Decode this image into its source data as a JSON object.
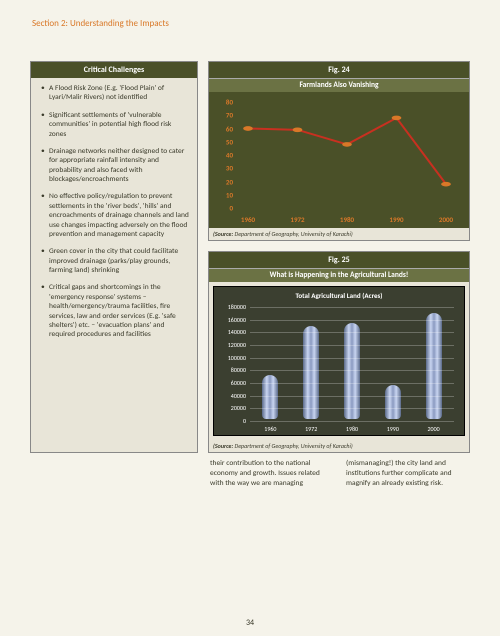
{
  "header": "Section 2: Understanding the Impacts",
  "pageNumber": "34",
  "challenges": {
    "title": "Critical Challenges",
    "items": [
      "A Flood Risk Zone  (E.g. 'Flood Plain' of Lyari/Malir Rivers) not identified",
      "Significant settlements of 'vulnerable communities' in potential high flood risk zones",
      "Drainage networks  neither designed to cater for appropriate rainfall intensity and probability and also faced with blockages/encroachments",
      "No effective policy/regulation to prevent settlements in the 'river beds', 'hills' and encroachments of drainage channels and land use changes impacting adversely on the flood prevention and management capacity",
      "Green cover in the city that could facilitate improved drainage (parks/play grounds, farming land) shrinking",
      "Critical gaps and shortcomings in the 'emergency response'  systems – health/emergency/trauma facilities, fire services, law and order services (E.g. 'safe shelters') etc. – 'evacuation plans' and required procedures and facilities"
    ]
  },
  "fig24": {
    "label": "Fig. 24",
    "subtitle": "Farmlands Also Vanishing",
    "yticks": [
      0,
      10,
      20,
      30,
      40,
      50,
      60,
      70,
      80
    ],
    "ymax": 80,
    "categories": [
      "1960",
      "1972",
      "1980",
      "1990",
      "2000"
    ],
    "values": [
      60,
      59,
      48,
      68,
      18
    ],
    "line_color": "#c83020",
    "marker_color": "#d97828",
    "tick_color": "#d97828",
    "bg": "#4a5028",
    "source_label": "(Source:",
    "source_text": " Department of Geography, University of Karachi)"
  },
  "fig25": {
    "label": "Fig. 25",
    "subtitle": "What is Happening in the Agricultural Lands!",
    "chart_title": "Total Agricultural Land (Acres)",
    "yticks": [
      0,
      20000,
      40000,
      60000,
      80000,
      100000,
      120000,
      140000,
      160000,
      180000
    ],
    "ymax": 180000,
    "categories": [
      "1960",
      "1972",
      "1980",
      "1990",
      "2000"
    ],
    "values": [
      70000,
      150000,
      155000,
      55000,
      170000
    ],
    "bar_gradient": [
      "#5a6a8a",
      "#c8d4f0",
      "#8a9ac0"
    ],
    "bg": "#3b3f30",
    "grid_color": "rgba(255,255,255,0.25)",
    "source_label": "(Source:",
    "source_text": " Department of Geography, University of Karachi)"
  },
  "bodyText": "their contribution to the national economy and growth. Issues related with the way we are managing (mismanaging!) the city land and institutions further complicate and magnify an already existing risk."
}
